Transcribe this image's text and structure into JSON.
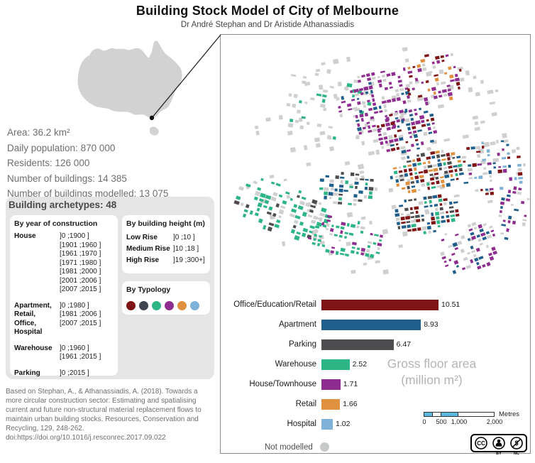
{
  "header": {
    "title": "Building Stock Model of City of Melbourne",
    "subtitle": "Dr André Stephan and Dr Aristide Athanassiadis"
  },
  "stats": [
    "Area: 36.2 km²",
    "Daily population:  870 000",
    "Residents: 126 000",
    "Number of buildings: 14 385",
    "Number of buildings modelled: 13 075"
  ],
  "archetypes": {
    "title": "Building archetypes: 48",
    "year_box": {
      "title": "By year of construction",
      "groups": [
        {
          "label": "House",
          "ranges": [
            "]0 ;1900 ]",
            "[1901 ;1960 ]",
            "[1961 ;1970 ]",
            "[1971 ;1980 ]",
            "[1981 ;2000 ]",
            "[2001 ;2006 ]",
            "[2007 ;2015 ]"
          ]
        },
        {
          "label": "Apartment, Retail, Office, Hospital",
          "ranges": [
            "]0 ;1980 ]",
            "[1981 ;2006 ]",
            "[2007 ;2015 ]"
          ]
        },
        {
          "label": "Warehouse",
          "ranges": [
            "]0 ;1960 ]",
            "[1961 ;2015 ]"
          ]
        },
        {
          "label": "Parking",
          "ranges": [
            "]0 ;2015 ]"
          ]
        }
      ]
    },
    "height_box": {
      "title": "By building height (m)",
      "rows": [
        {
          "label": "Low Rise",
          "range": "]0 ;10 ]"
        },
        {
          "label": "Medium Rise",
          "range": "]10 ;18 ]"
        },
        {
          "label": "High Rise",
          "range": "]19 ;300+]"
        }
      ]
    },
    "typology_box": {
      "title": "By Typology",
      "colors": [
        "#7f1416",
        "#3d4550",
        "#2eb585",
        "#8e2d8f",
        "#e0913f",
        "#7fb2d9"
      ]
    }
  },
  "chart_data": {
    "type": "bar",
    "orientation": "horizontal",
    "categories": [
      "Office/Education/Retail",
      "Apartment",
      "Parking",
      "Warehouse",
      "House/Townhouse",
      "Retail",
      "Hospital"
    ],
    "values": [
      10.51,
      8.93,
      6.47,
      2.52,
      1.71,
      1.66,
      1.02
    ],
    "value_labels": [
      "10.51",
      "8.93",
      "6.47",
      "2.52",
      "1.71",
      "1.66",
      "1.02"
    ],
    "colors": [
      "#7f1416",
      "#1f5f8b",
      "#4d4d4f",
      "#2eb585",
      "#8e2d8f",
      "#e0913f",
      "#7fb2d9"
    ],
    "title": "Gross floor area (million m²)",
    "annotation": {
      "line1": "Gross floor area",
      "line2": "(million m²)"
    },
    "xlim": [
      0,
      11
    ],
    "grid": false,
    "legend_position": "none"
  },
  "map_panel": {
    "not_modelled": {
      "label": "Not modelled",
      "color": "#c7c8ca"
    },
    "scale_bar": {
      "labels": [
        "0",
        "500",
        "1,000",
        "2,000"
      ],
      "unit": "Metres",
      "color": "#5bb8dd"
    },
    "license": {
      "labels": [
        "CC",
        "BY",
        "NC"
      ],
      "dollar": "$"
    }
  },
  "citation": "Based on Stephan, A., & Athanassiadis, A. (2018). Towards a more circular construction sector: Estimating and spatialising current and future non-structural material replacement flows to maintain urban building stocks. Resources, Conservation and Recycling, 129, 248-262. doi:https://doi.org/10.1016/j.resconrec.2017.09.022"
}
